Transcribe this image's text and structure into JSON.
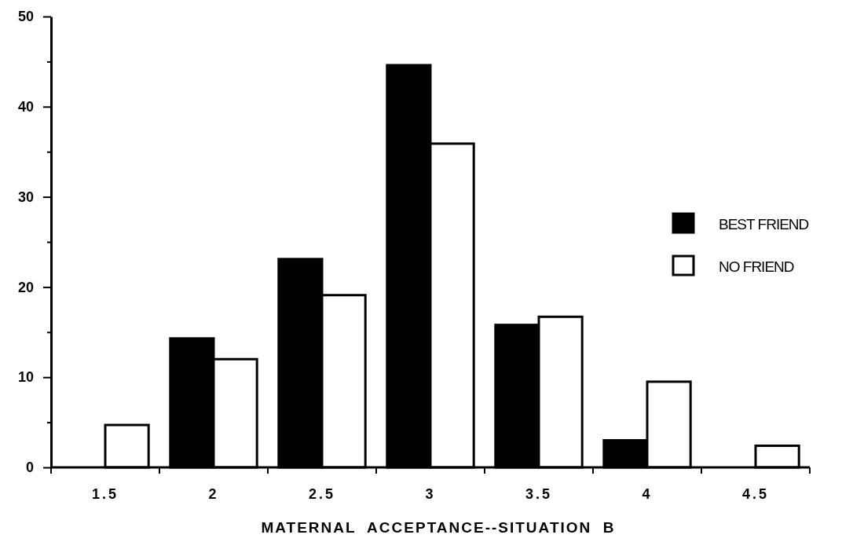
{
  "chart_data": {
    "type": "bar",
    "xlabel": "MATERNAL  ACCEPTANCE--SITUATION  B",
    "categories": [
      "1.5",
      "2",
      "2.5",
      "3",
      "3.5",
      "4",
      "4.5"
    ],
    "series": [
      {
        "name": "BEST FRIEND",
        "color": "#000000",
        "values": [
          0,
          14.3,
          23.1,
          44.6,
          15.8,
          3.0,
          0
        ]
      },
      {
        "name": "NO FRIEND",
        "color": "#ffffff",
        "values": [
          4.7,
          12.0,
          19.1,
          35.9,
          16.7,
          9.5,
          2.4
        ]
      }
    ],
    "ylim": [
      0,
      50
    ],
    "yticks": [
      0,
      {
        "value": 5,
        "label": null
      },
      10,
      {
        "value": 15,
        "label": null
      },
      20,
      {
        "value": 25,
        "label": null
      },
      30,
      {
        "value": 35,
        "label": null
      },
      40,
      {
        "value": 45,
        "label": null
      },
      50
    ],
    "legend": "right",
    "grid": false
  }
}
